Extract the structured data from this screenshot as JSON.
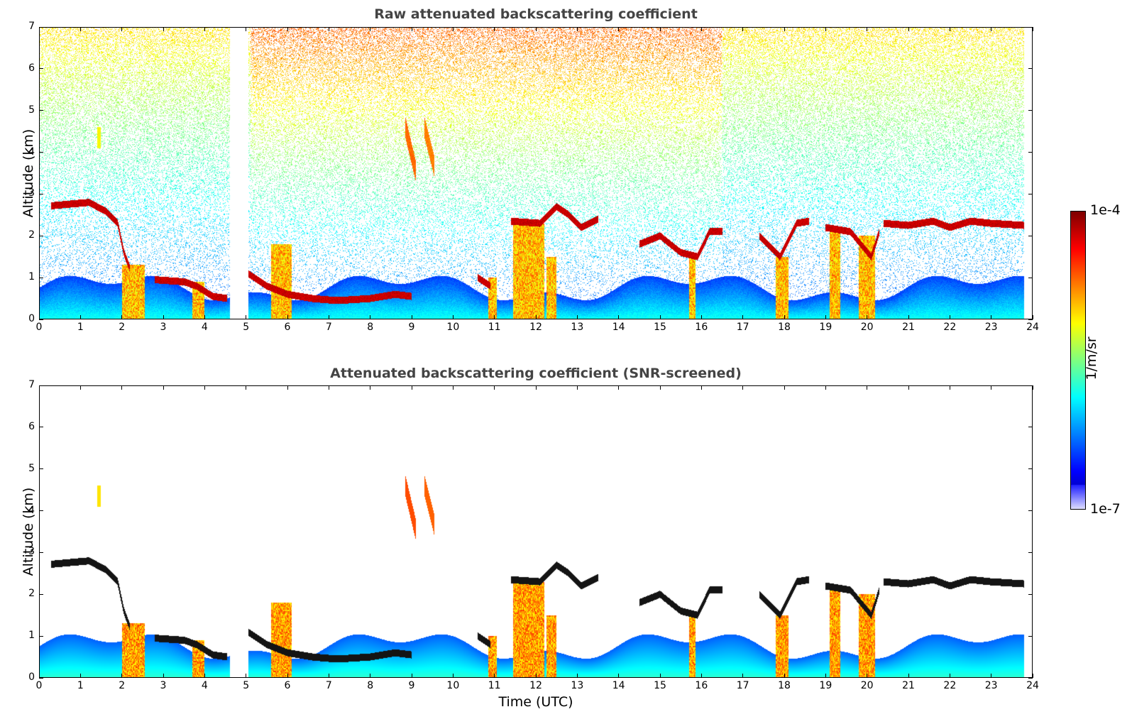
{
  "chart_data": [
    {
      "type": "heatmap",
      "title": "Raw attenuated backscattering coefficient",
      "xlabel": "",
      "ylabel": "Altitude (km)",
      "xlim": [
        0,
        24
      ],
      "ylim": [
        0,
        7
      ],
      "x_ticks": [
        "0",
        "1",
        "2",
        "3",
        "4",
        "5",
        "6",
        "7",
        "8",
        "9",
        "10",
        "11",
        "12",
        "13",
        "14",
        "15",
        "16",
        "17",
        "18",
        "19",
        "20",
        "21",
        "22",
        "23",
        "24"
      ],
      "y_ticks": [
        "0",
        "1",
        "2",
        "3",
        "4",
        "5",
        "6",
        "7"
      ],
      "data_gap_hours": [
        4.62,
        5.05
      ],
      "data_end_hour": 23.8,
      "screened": false,
      "cloud_layers": [
        {
          "x": [
            0.4,
            1.6
          ],
          "altitude_km": [
            2.75,
            2.6
          ]
        },
        {
          "x": [
            1.6,
            2.1
          ],
          "altitude_km": [
            2.5,
            1.3
          ]
        },
        {
          "x": [
            2.8,
            4.5
          ],
          "altitude_km": [
            0.95,
            0.45
          ]
        },
        {
          "x": [
            11.4,
            12.2
          ],
          "altitude_km": [
            2.3,
            2.3
          ]
        },
        {
          "x": [
            20.4,
            23.8
          ],
          "altitude_km": [
            2.3,
            2.25
          ]
        }
      ]
    },
    {
      "type": "heatmap",
      "title": "Attenuated backscattering coefficient (SNR-screened)",
      "xlabel": "Time (UTC)",
      "ylabel": "Altitude (km)",
      "xlim": [
        0,
        24
      ],
      "ylim": [
        0,
        7
      ],
      "x_ticks": [
        "0",
        "1",
        "2",
        "3",
        "4",
        "5",
        "6",
        "7",
        "8",
        "9",
        "10",
        "11",
        "12",
        "13",
        "14",
        "15",
        "16",
        "17",
        "18",
        "19",
        "20",
        "21",
        "22",
        "23",
        "24"
      ],
      "y_ticks": [
        "0",
        "1",
        "2",
        "3",
        "4",
        "5",
        "6",
        "7"
      ],
      "data_gap_hours": [
        4.62,
        5.05
      ],
      "data_end_hour": 23.8,
      "screened": true
    }
  ],
  "colorbar": {
    "label": "1/m/sr",
    "max_label": "1e-4",
    "min_label": "1e-7",
    "scale": "log",
    "range": [
      1e-07,
      0.0001
    ],
    "colormap": "jet"
  }
}
